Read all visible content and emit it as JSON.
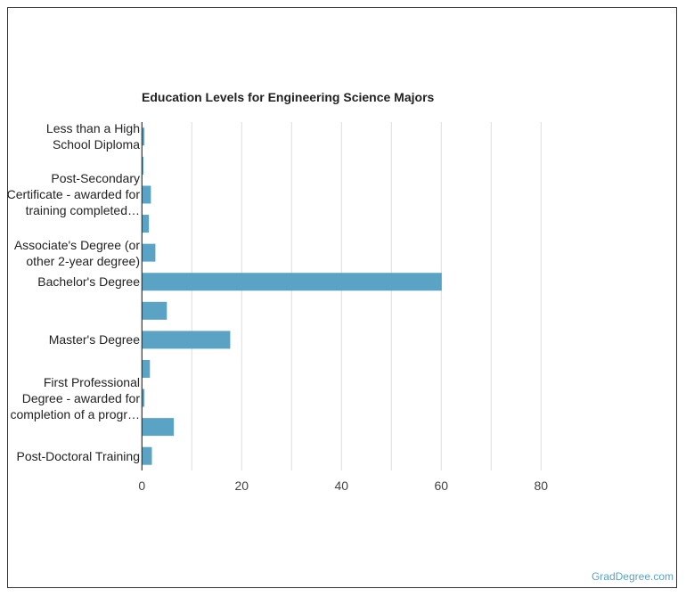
{
  "chart_data": {
    "type": "bar",
    "orientation": "horizontal",
    "title": "Education Levels for Engineering Science Majors",
    "categories": [
      "Less than a High School Diploma",
      "",
      "Post-Secondary Certificate - awarded for training completed…",
      "",
      "Associate's Degree (or other 2-year degree)",
      "Bachelor's Degree",
      "",
      "Master's Degree",
      "",
      "First Professional Degree - awarded for completion of a progr…",
      "",
      "Post-Doctoral Training"
    ],
    "values": [
      0.5,
      0.3,
      1.8,
      1.4,
      2.7,
      60.1,
      5.0,
      17.7,
      1.6,
      0.5,
      6.4,
      2.0
    ],
    "xlim": [
      0,
      80
    ],
    "xticks": [
      "0",
      "20",
      "40",
      "60",
      "80"
    ],
    "grid": true,
    "bar_color": "#5ba3c4"
  },
  "credit": "GradDegree.com"
}
